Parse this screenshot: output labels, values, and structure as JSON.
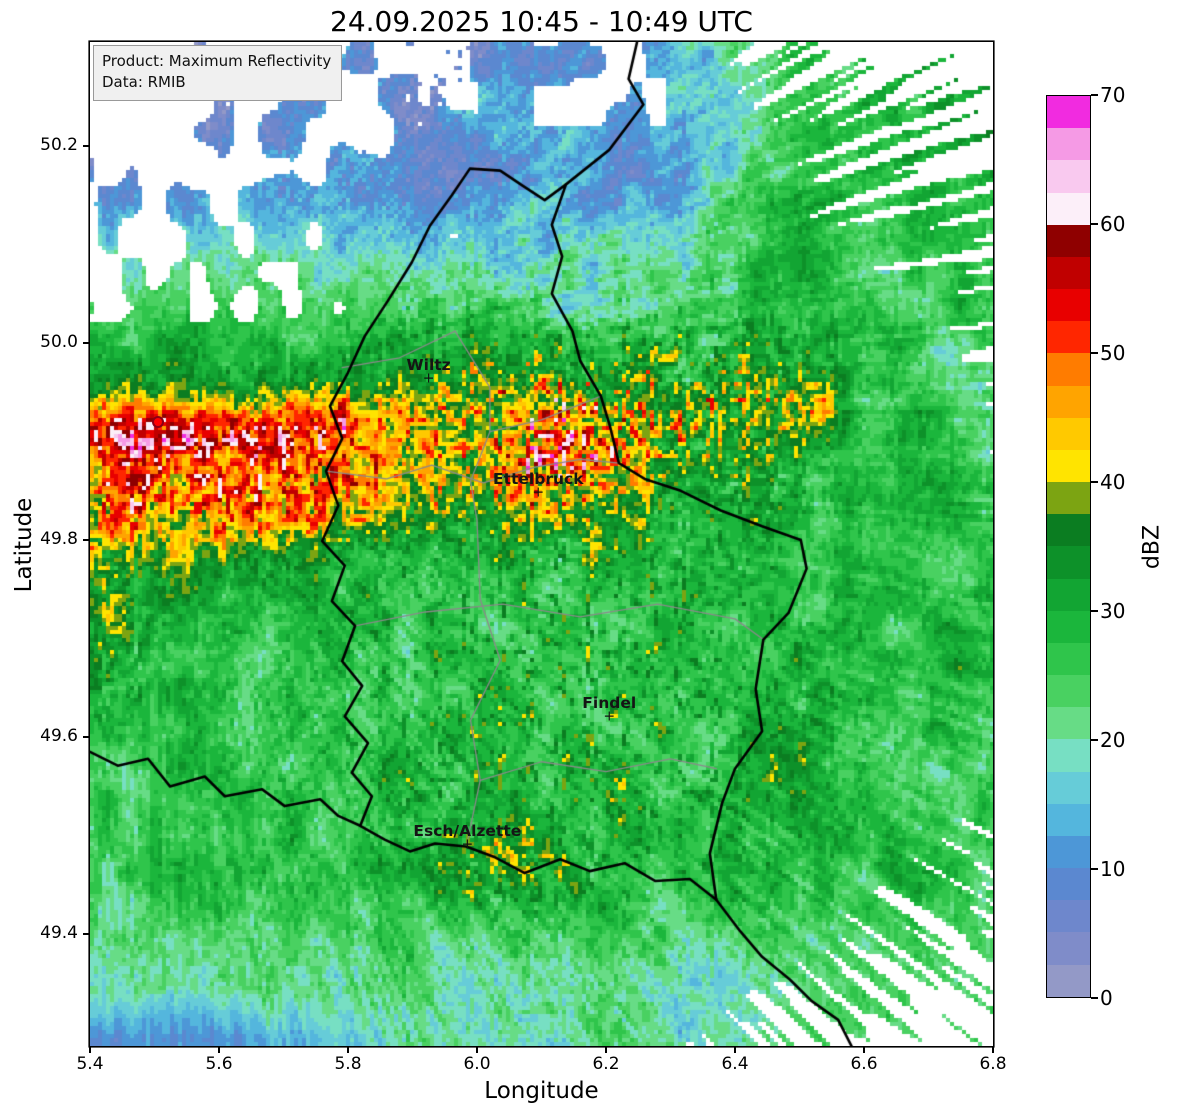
{
  "title": "24.09.2025 10:45 - 10:49 UTC",
  "info_box": {
    "line1": "Product: Maximum Reflectivity",
    "line2": "Data: RMIB"
  },
  "axes": {
    "xlabel": "Longitude",
    "ylabel": "Latitude",
    "xlim": [
      5.4,
      6.8
    ],
    "ylim": [
      49.2865,
      50.3055
    ],
    "x_ticks": [
      "5.4",
      "5.6",
      "5.8",
      "6.0",
      "6.2",
      "6.4",
      "6.6",
      "6.8"
    ],
    "y_ticks": [
      "50.2",
      "50.0",
      "49.8",
      "49.6",
      "49.4"
    ]
  },
  "colorbar": {
    "label": "dBZ",
    "min": 0,
    "max": 70,
    "ticks": [
      0,
      10,
      20,
      30,
      40,
      50,
      60,
      70
    ],
    "step": 2.5,
    "colors": [
      "#9399c7",
      "#7f8cc9",
      "#6e87cc",
      "#5b88d0",
      "#4d97d7",
      "#54b6dd",
      "#66ccd8",
      "#77dfc3",
      "#67dc86",
      "#49d161",
      "#2fc54b",
      "#1bb63c",
      "#12a533",
      "#0d9129",
      "#0b7d21",
      "#7ca412",
      "#ffe400",
      "#ffc900",
      "#ffa400",
      "#ff7c00",
      "#ff2600",
      "#e80000",
      "#c00000",
      "#8f0000",
      "#fceff9",
      "#f9c9ef",
      "#f59ae5",
      "#f12be0"
    ]
  },
  "cities": [
    {
      "name": "Wiltz",
      "lon": 5.925,
      "lat": 49.963
    },
    {
      "name": "Ettelbruck",
      "lon": 6.095,
      "lat": 49.848
    },
    {
      "name": "Findel",
      "lon": 6.205,
      "lat": 49.62
    },
    {
      "name": "Esch/Alzette",
      "lon": 5.985,
      "lat": 49.49
    }
  ],
  "radar_site": {
    "lon": 5.505,
    "lat": 49.92,
    "marker_color": "#ff0000"
  },
  "chart_data": {
    "type": "heatmap",
    "quantity": "maximum radar reflectivity",
    "units": "dBZ",
    "value_range": [
      0,
      70
    ],
    "xlim": [
      5.4,
      6.8
    ],
    "ylim": [
      49.2865,
      50.3055
    ],
    "background_dbz": 27,
    "description": "Weather radar composite over Luxembourg: widespread stratiform rain of 20-35 dBZ, an intense WSW-ENE convective band of 40-55 dBZ near 49.9N west of 6.2E with >50 dBZ cores near 5.4-5.8E, scattered 40 dBZ cells east of Ettelbruck and near Esch/Alzette, weak 5-15 dBZ echoes along the northern edge and echo-free (white) sectors in the NW, NE and SE corners.",
    "bands": [
      {
        "from": [
          5.38,
          49.872
        ],
        "to": [
          6.14,
          49.9
        ],
        "sigma": 0.058,
        "amp": 19,
        "speckle": 0.5
      },
      {
        "from": [
          5.38,
          49.908
        ],
        "to": [
          5.8,
          49.918
        ],
        "sigma": 0.02,
        "amp": 13,
        "speckle": 0.1
      },
      {
        "from": [
          5.38,
          49.8
        ],
        "to": [
          5.76,
          49.848
        ],
        "sigma": 0.047,
        "amp": 11,
        "speckle": 0.6
      },
      {
        "from": [
          6.1,
          49.885
        ],
        "to": [
          6.44,
          49.902
        ],
        "sigma": 0.052,
        "amp": 12,
        "speckle": 0.9
      },
      {
        "from": [
          6.27,
          49.966
        ],
        "to": [
          6.52,
          49.954
        ],
        "sigma": 0.03,
        "amp": 9,
        "speckle": 0.8
      }
    ],
    "blobs": [
      {
        "center": [
          6.53,
          49.928
        ],
        "sigma": [
          0.03,
          0.024
        ],
        "amp": 10,
        "speckle": 0.2
      },
      {
        "center": [
          6.03,
          49.468
        ],
        "sigma": [
          0.055,
          0.028
        ],
        "amp": 13,
        "speckle": 0.85
      },
      {
        "center": [
          5.44,
          49.7
        ],
        "sigma": [
          0.04,
          0.045
        ],
        "amp": 10,
        "speckle": 0.8
      }
    ],
    "speckle_zones": [
      {
        "center": [
          6.15,
          49.64
        ],
        "sigma": [
          0.22,
          0.13
        ],
        "amp": 16
      },
      {
        "center": [
          6.15,
          49.95
        ],
        "sigma": [
          0.2,
          0.055
        ],
        "amp": 14
      }
    ],
    "borders": {
      "black": [
        [
          [
            6.248,
            50.305
          ],
          [
            6.235,
            50.268
          ],
          [
            6.258,
            50.242
          ],
          [
            6.205,
            50.196
          ],
          [
            6.138,
            50.161
          ]
        ],
        [
          [
            6.138,
            50.161
          ],
          [
            6.116,
            50.12
          ],
          [
            6.132,
            50.088
          ],
          [
            6.116,
            50.05
          ],
          [
            6.148,
            50.012
          ],
          [
            6.16,
            49.982
          ],
          [
            6.192,
            49.946
          ],
          [
            6.206,
            49.916
          ],
          [
            6.22,
            49.878
          ],
          [
            6.26,
            49.862
          ],
          [
            6.316,
            49.85
          ],
          [
            6.378,
            49.83
          ],
          [
            6.442,
            49.814
          ],
          [
            6.502,
            49.8
          ],
          [
            6.511,
            49.771
          ],
          [
            6.483,
            49.726
          ],
          [
            6.444,
            49.699
          ],
          [
            6.432,
            49.649
          ],
          [
            6.442,
            49.606
          ],
          [
            6.4,
            49.568
          ],
          [
            6.38,
            49.533
          ],
          [
            6.361,
            49.482
          ],
          [
            6.371,
            49.435
          ],
          [
            6.33,
            49.456
          ],
          [
            6.276,
            49.454
          ],
          [
            6.229,
            49.472
          ],
          [
            6.175,
            49.464
          ],
          [
            6.129,
            49.476
          ],
          [
            6.074,
            49.462
          ],
          [
            6.028,
            49.478
          ],
          [
            5.983,
            49.489
          ],
          [
            5.935,
            49.492
          ],
          [
            5.896,
            49.484
          ],
          [
            5.857,
            49.496
          ],
          [
            5.819,
            49.51
          ],
          [
            5.837,
            49.54
          ],
          [
            5.806,
            49.564
          ],
          [
            5.831,
            49.594
          ],
          [
            5.795,
            49.621
          ],
          [
            5.822,
            49.652
          ],
          [
            5.791,
            49.677
          ],
          [
            5.811,
            49.713
          ],
          [
            5.775,
            49.738
          ],
          [
            5.795,
            49.774
          ],
          [
            5.76,
            49.799
          ],
          [
            5.785,
            49.835
          ],
          [
            5.766,
            49.87
          ],
          [
            5.791,
            49.903
          ],
          [
            5.772,
            49.936
          ],
          [
            5.8,
            49.97
          ],
          [
            5.826,
            50.007
          ],
          [
            5.862,
            50.043
          ],
          [
            5.899,
            50.082
          ],
          [
            5.927,
            50.119
          ],
          [
            5.961,
            50.15
          ],
          [
            5.989,
            50.177
          ],
          [
            6.036,
            50.175
          ],
          [
            6.07,
            50.16
          ],
          [
            6.105,
            50.145
          ],
          [
            6.138,
            50.161
          ]
        ],
        [
          [
            5.4,
            49.585
          ],
          [
            5.443,
            49.571
          ],
          [
            5.49,
            49.578
          ],
          [
            5.524,
            49.55
          ],
          [
            5.578,
            49.56
          ],
          [
            5.609,
            49.54
          ],
          [
            5.667,
            49.547
          ],
          [
            5.702,
            49.53
          ],
          [
            5.757,
            49.537
          ],
          [
            5.785,
            49.52
          ],
          [
            5.819,
            49.51
          ]
        ],
        [
          [
            6.371,
            49.435
          ],
          [
            6.408,
            49.403
          ],
          [
            6.442,
            49.377
          ],
          [
            6.485,
            49.354
          ],
          [
            6.519,
            49.332
          ],
          [
            6.56,
            49.313
          ],
          [
            6.581,
            49.286
          ]
        ]
      ],
      "gray": [
        [
          [
            5.766,
            49.87
          ],
          [
            5.86,
            49.862
          ],
          [
            5.93,
            49.876
          ],
          [
            6.01,
            49.858
          ],
          [
            6.09,
            49.874
          ],
          [
            6.16,
            49.882
          ],
          [
            6.22,
            49.878
          ]
        ],
        [
          [
            5.966,
            50.012
          ],
          [
            6.02,
            49.955
          ],
          [
            6.02,
            49.91
          ],
          [
            5.99,
            49.86
          ],
          [
            6.0,
            49.82
          ],
          [
            6.005,
            49.74
          ],
          [
            6.036,
            49.678
          ],
          [
            5.99,
            49.617
          ],
          [
            6.005,
            49.556
          ],
          [
            5.986,
            49.497
          ]
        ],
        [
          [
            5.811,
            49.713
          ],
          [
            5.92,
            49.727
          ],
          [
            6.04,
            49.735
          ],
          [
            6.16,
            49.722
          ],
          [
            6.28,
            49.735
          ],
          [
            6.4,
            49.72
          ],
          [
            6.444,
            49.699
          ]
        ],
        [
          [
            6.005,
            49.556
          ],
          [
            6.1,
            49.575
          ],
          [
            6.2,
            49.565
          ],
          [
            6.3,
            49.578
          ],
          [
            6.371,
            49.568
          ]
        ],
        [
          [
            6.02,
            49.91
          ],
          [
            6.1,
            49.922
          ],
          [
            6.192,
            49.946
          ]
        ],
        [
          [
            5.791,
            49.975
          ],
          [
            5.88,
            49.985
          ],
          [
            5.966,
            50.012
          ]
        ]
      ]
    }
  }
}
